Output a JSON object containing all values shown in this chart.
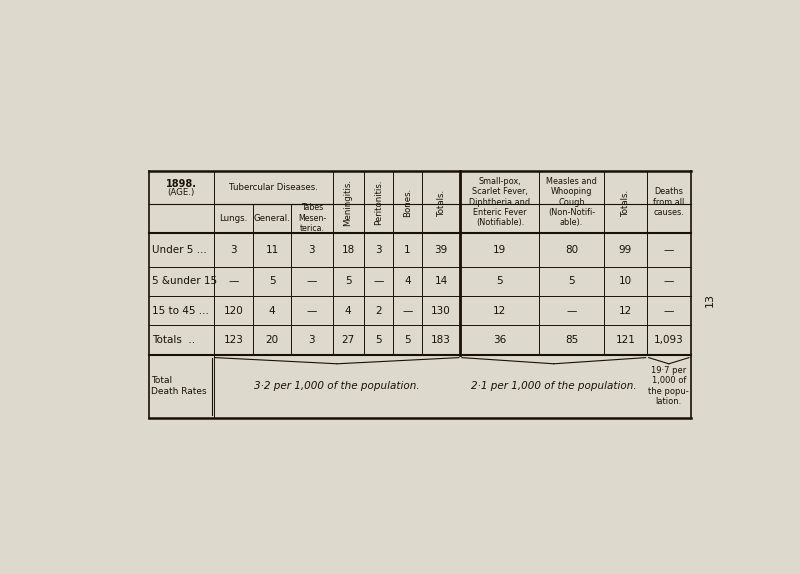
{
  "bg_color": "#ddd9cc",
  "text_color": "#1a1008",
  "title_year": "1898.",
  "title_age": "(AGE.)",
  "col_headers_tubercular": "Tubercular Diseases.",
  "col_header_lungs": "Lungs.",
  "col_header_general": "General.",
  "col_header_tabes": "Tabes\nMesen-\nterica.",
  "col_header_meningitis": "Meningitis.",
  "col_header_peritonitis": "Peritonitis.",
  "col_header_bones": "Bones.",
  "col_header_totals1": "Totals.",
  "col_header_smallpox": "Small-pox,\nScarlet Fever,\nDiphtheria and\nEnteric Fever\n(Notifiable).",
  "col_header_measles": "Measles and\nWhooping\nCough\n(Non-Notifi-\nable).",
  "col_header_totals2": "Totals.",
  "col_header_deaths": "Deaths\nfrom all\ncauses.",
  "rows": [
    [
      "Under 5 ...",
      "3",
      "11",
      "3",
      "18",
      "3",
      "1",
      "39",
      "19",
      "80",
      "99",
      "—"
    ],
    [
      "5 &under 15",
      "—",
      "5",
      "—",
      "5",
      "—",
      "4",
      "14",
      "5",
      "5",
      "10",
      "—"
    ],
    [
      "15 to 45 ...",
      "120",
      "4",
      "—",
      "4",
      "2",
      "—",
      "130",
      "12",
      "—",
      "12",
      "—"
    ],
    [
      "Totals  ..",
      "123",
      "20",
      "3",
      "27",
      "5",
      "5",
      "183",
      "36",
      "85",
      "121",
      "1,093"
    ]
  ],
  "footer_label": "Total\nDeath Rates",
  "footer_text1": "3·2 per 1,000 of the population.",
  "footer_text2": "2·1 per 1,000 of the population.",
  "footer_text3": "19·7 per\n1,000 of\nthe popu-\nlation.",
  "page_number": "13"
}
